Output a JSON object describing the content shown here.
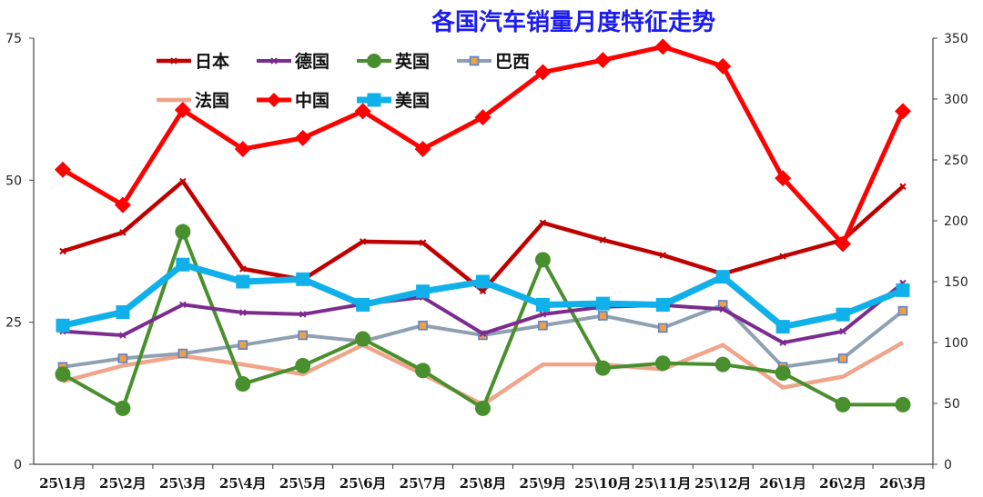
{
  "chart_data": {
    "type": "line",
    "title": "各国汽车销量月度特征走势",
    "categories": [
      "25\\1月",
      "25\\2月",
      "25\\3月",
      "25\\4月",
      "25\\5月",
      "25\\6月",
      "25\\7月",
      "25\\8月",
      "25\\9月",
      "25\\10月",
      "25\\11月",
      "25\\12月",
      "26\\1月",
      "26\\2月",
      "26\\3月"
    ],
    "y_left": {
      "min": 0,
      "max": 75,
      "ticks": [
        0,
        25,
        50,
        75
      ]
    },
    "y_right": {
      "min": 0,
      "max": 350,
      "ticks": [
        0,
        50,
        100,
        150,
        200,
        250,
        300,
        350
      ]
    },
    "legend_position": "top-left",
    "grid": false,
    "series": [
      {
        "name": "日本",
        "axis": "left",
        "color": "#c00000",
        "marker": "cross",
        "values": [
          37.5,
          40.8,
          49.8,
          34.4,
          32.5,
          39.2,
          39.0,
          30.5,
          42.5,
          39.5,
          36.8,
          33.5,
          36.6,
          39.5,
          48.9
        ]
      },
      {
        "name": "德国",
        "axis": "left",
        "color": "#7b2c8e",
        "marker": "x",
        "values": [
          23.4,
          22.7,
          28.1,
          26.7,
          26.4,
          28.2,
          29.4,
          23.0,
          26.4,
          27.7,
          28.0,
          27.3,
          21.4,
          23.4,
          31.9
        ]
      },
      {
        "name": "英国",
        "axis": "right",
        "color": "#4a8f2e",
        "marker": "circle",
        "values": [
          74,
          46,
          191,
          66,
          81,
          103,
          77,
          46,
          168,
          79,
          83,
          82,
          75,
          49,
          49
        ]
      },
      {
        "name": "巴西",
        "axis": "right",
        "color": "#8fa0b2",
        "marker": "square",
        "values": [
          80,
          87,
          91,
          98,
          106,
          101,
          114,
          106,
          114,
          122,
          112,
          131,
          80,
          87,
          126
        ]
      },
      {
        "name": "法国",
        "axis": "right",
        "color": "#f0a58a",
        "marker": "none",
        "values": [
          68,
          81,
          89,
          82,
          74,
          98,
          74,
          49,
          82,
          82,
          78,
          98,
          63,
          72,
          100
        ]
      },
      {
        "name": "中国",
        "axis": "right",
        "color": "#ff0000",
        "marker": "diamond",
        "values": [
          242,
          213,
          291,
          259,
          268,
          290,
          259,
          285,
          322,
          332,
          343,
          327,
          235,
          181,
          290
        ]
      },
      {
        "name": "美国",
        "axis": "right",
        "color": "#10b0ea",
        "marker": "square",
        "values": [
          114,
          125,
          164,
          150,
          152,
          131,
          142,
          150,
          131,
          132,
          131,
          154,
          113,
          123,
          143
        ]
      }
    ]
  }
}
